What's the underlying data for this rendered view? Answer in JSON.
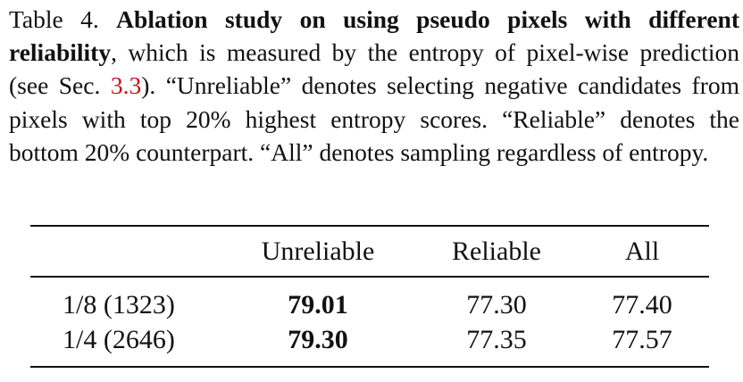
{
  "caption": {
    "label": "Table 4.",
    "title": "Ablation study on using pseudo pixels with different reliability",
    "text_before_ref": ", which is measured by the entropy of pixel-wise prediction (see Sec. ",
    "ref": "3.3",
    "text_after_ref": "). “Unreliable” denotes selecting negative candidates from pixels with top 20% highest entropy scores. “Reliable” denotes the bottom 20% counterpart.  “All” denotes sampling regardless of entropy."
  },
  "table": {
    "columns": [
      "",
      "Unreliable",
      "Reliable",
      "All"
    ],
    "rows": [
      {
        "label": "1/8 (1323)",
        "unreliable": "79.01",
        "reliable": "77.30",
        "all": "77.40"
      },
      {
        "label": "1/4 (2646)",
        "unreliable": "79.30",
        "reliable": "77.35",
        "all": "77.57"
      }
    ]
  },
  "colors": {
    "text": "#111111",
    "ref_link": "#c4161c",
    "background": "#ffffff"
  }
}
